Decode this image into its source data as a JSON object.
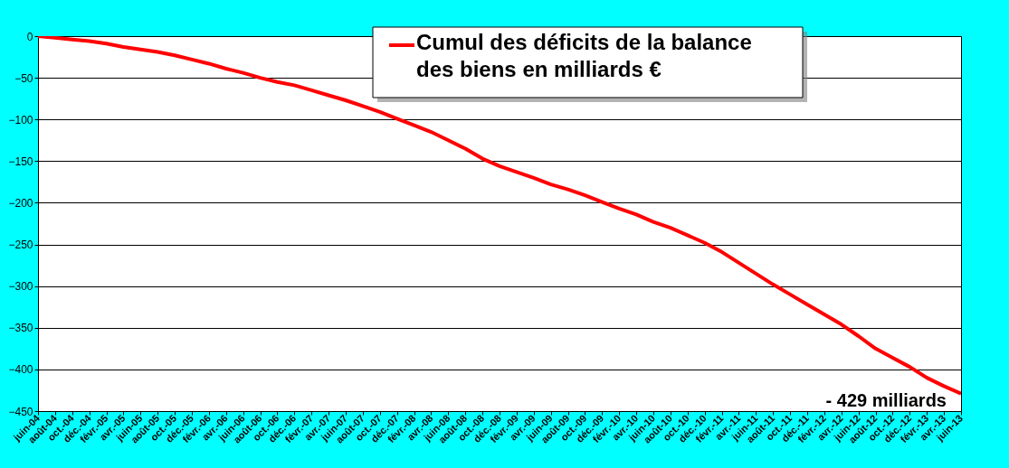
{
  "chart_data": {
    "type": "line",
    "categories": [
      "juin-04",
      "août-04",
      "oct.-04",
      "déc.-04",
      "févr.-05",
      "avr.-05",
      "juin-05",
      "août-05",
      "oct.-05",
      "déc.-05",
      "févr.-06",
      "avr.-06",
      "juin-06",
      "août-06",
      "oct.-06",
      "déc.-06",
      "févr.-07",
      "avr.-07",
      "juin-07",
      "août-07",
      "oct.-07",
      "déc.-07",
      "févr.-08",
      "avr.-08",
      "juin-08",
      "août-08",
      "oct.-08",
      "déc.-08",
      "févr.-09",
      "avr.-09",
      "juin-09",
      "août-09",
      "oct.-09",
      "déc.-09",
      "févr.-10",
      "avr.-10",
      "juin-10",
      "août-10",
      "oct.-10",
      "déc.-10",
      "févr.-11",
      "avr.-11",
      "juin-11",
      "août-11",
      "oct.-11",
      "déc.-11",
      "févr.-12",
      "avr.-12",
      "juin-12",
      "août-12",
      "oct.-12",
      "déc.-12",
      "févr.-13",
      "avr.-13",
      "juin-13"
    ],
    "series": [
      {
        "name": "Cumul des déficits de la balance des biens en milliards €",
        "color": "#ff0000",
        "values": [
          0,
          -2,
          -4,
          -6,
          -9,
          -13,
          -16,
          -19,
          -23,
          -28,
          -33,
          -39,
          -44,
          -50,
          -55,
          -59,
          -65,
          -71,
          -77,
          -84,
          -91,
          -99,
          -107,
          -115,
          -125,
          -135,
          -147,
          -156,
          -163,
          -170,
          -178,
          -184,
          -191,
          -199,
          -207,
          -214,
          -223,
          -230,
          -239,
          -248,
          -259,
          -272,
          -285,
          -298,
          -310,
          -322,
          -334,
          -346,
          -360,
          -375,
          -386,
          -397,
          -410,
          -420,
          -429
        ]
      }
    ],
    "ylim": [
      -450,
      0
    ],
    "yticks": [
      -450,
      -400,
      -350,
      -300,
      -250,
      -200,
      -150,
      -100,
      -50,
      0
    ],
    "grid": "y",
    "legend": "top",
    "marker": "none",
    "line_style": "solid",
    "annotations": [
      {
        "text": "- 429 milliards",
        "x": "juin-13",
        "y": -429
      }
    ]
  }
}
